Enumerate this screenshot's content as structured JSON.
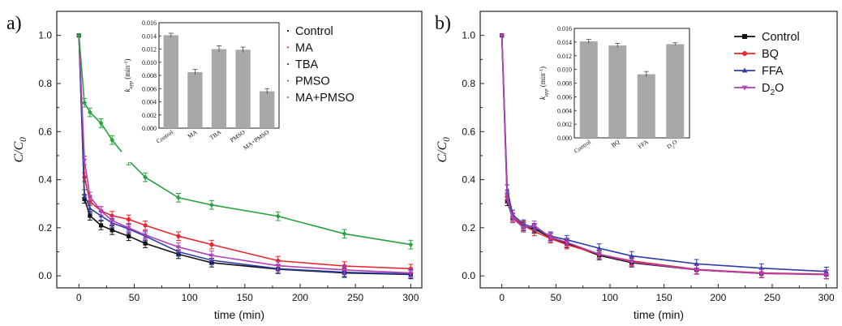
{
  "chart_data": [
    {
      "type": "line",
      "panel_label": "a)",
      "xlabel": "time (min)",
      "ylabel_main": "C/C",
      "ylabel_sub": "0",
      "xlim": [
        -20,
        310
      ],
      "ylim": [
        -0.05,
        1.1
      ],
      "xticks": [
        0,
        50,
        100,
        150,
        200,
        250,
        300
      ],
      "yticks": [
        0.0,
        0.2,
        0.4,
        0.6,
        0.8,
        1.0
      ],
      "legend_position": "top-right",
      "series": [
        {
          "name": "Control",
          "color": "#111111",
          "marker": "square",
          "x": [
            0,
            5,
            10,
            20,
            30,
            45,
            60,
            90,
            120,
            180,
            240,
            300
          ],
          "y": [
            1.0,
            0.32,
            0.25,
            0.21,
            0.19,
            0.165,
            0.135,
            0.09,
            0.055,
            0.028,
            0.012,
            0.006
          ]
        },
        {
          "name": "MA",
          "color": "#e8262b",
          "marker": "circle",
          "x": [
            0,
            5,
            10,
            20,
            30,
            45,
            60,
            90,
            120,
            180,
            240,
            300
          ],
          "y": [
            1.0,
            0.41,
            0.31,
            0.27,
            0.25,
            0.235,
            0.21,
            0.165,
            0.13,
            0.063,
            0.041,
            0.03
          ]
        },
        {
          "name": "TBA",
          "color": "#2d3ea8",
          "marker": "triangle-up",
          "x": [
            0,
            5,
            10,
            20,
            30,
            45,
            60,
            90,
            120,
            180,
            240,
            300
          ],
          "y": [
            1.0,
            0.34,
            0.28,
            0.25,
            0.22,
            0.195,
            0.165,
            0.1,
            0.065,
            0.03,
            0.015,
            0.008
          ]
        },
        {
          "name": "PMSO",
          "color": "#b23fb8",
          "marker": "triangle-down",
          "x": [
            0,
            5,
            10,
            20,
            30,
            45,
            60,
            90,
            120,
            180,
            240,
            300
          ],
          "y": [
            1.0,
            0.48,
            0.33,
            0.27,
            0.23,
            0.2,
            0.17,
            0.12,
            0.085,
            0.042,
            0.025,
            0.012
          ]
        },
        {
          "name": "MA+PMSO",
          "color": "#2aa140",
          "marker": "diamond",
          "x": [
            0,
            5,
            10,
            20,
            30,
            45,
            60,
            90,
            120,
            180,
            240,
            300
          ],
          "y": [
            1.0,
            0.72,
            0.68,
            0.635,
            0.565,
            0.48,
            0.41,
            0.325,
            0.295,
            0.248,
            0.175,
            0.13
          ]
        }
      ],
      "inset": {
        "type": "bar",
        "ylabel_main": "k",
        "ylabel_sub": "app",
        "ylabel_unit": "(min",
        "ylabel_sup": "-1",
        "ylabel_close": ")",
        "ylim": [
          0,
          0.016
        ],
        "yticks": [
          "0.000",
          "0.002",
          "0.004",
          "0.006",
          "0.008",
          "0.010",
          "0.012",
          "0.014",
          "0.016"
        ],
        "categories": [
          "Control",
          "MA",
          "TBA",
          "PMSO",
          "MA+PMSO"
        ],
        "values": [
          0.0141,
          0.0085,
          0.012,
          0.0119,
          0.0056
        ],
        "errors": [
          0.0003,
          0.0004,
          0.0005,
          0.0004,
          0.0004
        ],
        "bar_color": "#a8a8a8"
      }
    },
    {
      "type": "line",
      "panel_label": "b)",
      "xlabel": "time (min)",
      "ylabel_main": "C/C",
      "ylabel_sub": "0",
      "xlim": [
        -20,
        310
      ],
      "ylim": [
        -0.05,
        1.1
      ],
      "xticks": [
        0,
        50,
        100,
        150,
        200,
        250,
        300
      ],
      "yticks": [
        0.0,
        0.2,
        0.4,
        0.6,
        0.8,
        1.0
      ],
      "legend_position": "top-right",
      "series": [
        {
          "name": "Control",
          "color": "#111111",
          "marker": "square",
          "x": [
            0,
            5,
            10,
            20,
            30,
            45,
            60,
            90,
            120,
            180,
            240,
            300
          ],
          "y": [
            1.0,
            0.31,
            0.24,
            0.205,
            0.195,
            0.16,
            0.135,
            0.085,
            0.055,
            0.025,
            0.01,
            0.006
          ]
        },
        {
          "name": "BQ",
          "color": "#e8262b",
          "marker": "circle",
          "x": [
            0,
            5,
            10,
            20,
            30,
            45,
            60,
            90,
            120,
            180,
            240,
            300
          ],
          "y": [
            1.0,
            0.33,
            0.245,
            0.21,
            0.185,
            0.155,
            0.13,
            0.09,
            0.062,
            0.027,
            0.012,
            0.007
          ]
        },
        {
          "name": "FFA",
          "color": "#2d3ea8",
          "marker": "triangle-up",
          "x": [
            0,
            5,
            10,
            20,
            30,
            45,
            60,
            90,
            120,
            180,
            240,
            300
          ],
          "y": [
            1.0,
            0.36,
            0.255,
            0.215,
            0.2,
            0.165,
            0.15,
            0.115,
            0.083,
            0.05,
            0.032,
            0.018
          ]
        },
        {
          "name": "D2O",
          "color": "#b23fb8",
          "marker": "triangle-down",
          "x": [
            0,
            5,
            10,
            20,
            30,
            45,
            60,
            90,
            120,
            180,
            240,
            300
          ],
          "y": [
            1.0,
            0.32,
            0.24,
            0.2,
            0.21,
            0.16,
            0.14,
            0.09,
            0.058,
            0.025,
            0.01,
            0.005
          ]
        }
      ],
      "inset": {
        "type": "bar",
        "ylabel_main": "k",
        "ylabel_sub": "app",
        "ylabel_unit": "(min",
        "ylabel_sup": "-1",
        "ylabel_close": ")",
        "ylim": [
          0,
          0.016
        ],
        "yticks": [
          "0.000",
          "0.002",
          "0.004",
          "0.006",
          "0.008",
          "0.010",
          "0.012",
          "0.014",
          "0.016"
        ],
        "categories": [
          "Control",
          "BQ",
          "FFA",
          "D2O"
        ],
        "values": [
          0.0141,
          0.0135,
          0.0093,
          0.0137
        ],
        "errors": [
          0.0003,
          0.0003,
          0.0004,
          0.0002
        ],
        "bar_color": "#a8a8a8"
      }
    }
  ]
}
